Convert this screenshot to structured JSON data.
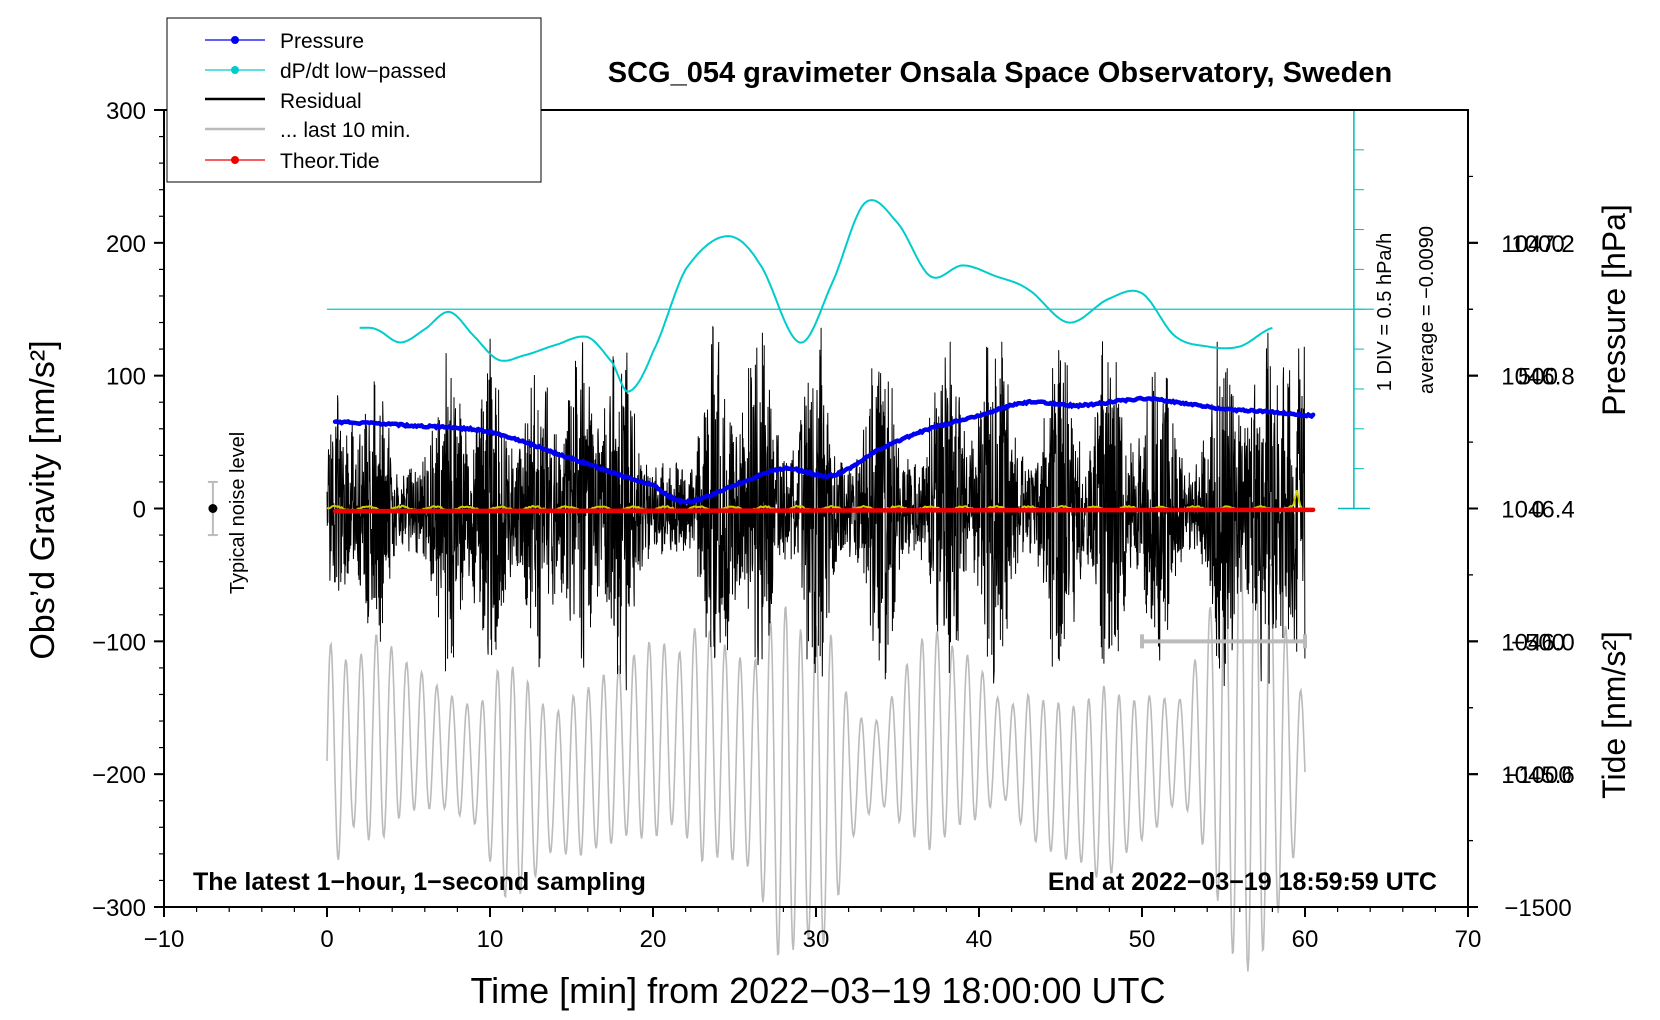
{
  "chart_data": {
    "type": "line",
    "title": "SCG_054 gravimeter Onsala Space Observatory, Sweden",
    "xlabel": "Time [min] from 2022−03−19 18:00:00 UTC",
    "ylabel_left": "Obs’d Gravity [nm/s²]",
    "ylabel_right_top": "Pressure [hPa]",
    "ylabel_right_bottom": "Tide [nm/s²]",
    "xlim": [
      -10,
      70
    ],
    "ylim_left": [
      -300,
      300
    ],
    "ylim_pressure": [
      1045.2,
      1047.6
    ],
    "ylim_tide": [
      -1500,
      1500
    ],
    "x_ticks": [
      -10,
      0,
      10,
      20,
      30,
      40,
      50,
      60,
      70
    ],
    "x_tick_labels": [
      "−10",
      "0",
      "10",
      "20",
      "30",
      "40",
      "50",
      "60",
      "70"
    ],
    "y_left_ticks": [
      -300,
      -200,
      -100,
      0,
      100,
      200,
      300
    ],
    "y_left_tick_labels": [
      "−300",
      "−200",
      "−100",
      "0",
      "100",
      "200",
      "300"
    ],
    "pressure_ticks": [
      1045.6,
      1046.0,
      1046.4,
      1046.8,
      1047.2
    ],
    "pressure_tick_labels": [
      "1045.6",
      "1046.0",
      "1046.4",
      "1046.8",
      "1047.2"
    ],
    "tide_ticks": [
      -1500,
      -1000,
      -500,
      0,
      500,
      1000
    ],
    "tide_tick_labels": [
      "−1500",
      "−1000",
      "−500",
      "0",
      "500",
      "1000"
    ],
    "annotations": {
      "bottom_left": "The latest 1−hour, 1−second sampling",
      "bottom_right": "End at 2022−03−19 18:59:59 UTC",
      "dpdt_scale": "1 DIV = 0.5 hPa/h",
      "dpdt_average": "average = −0.0090",
      "noise": "Typical noise level"
    },
    "legend": {
      "position": "top-left",
      "entries": [
        {
          "label": "Pressure",
          "color": "#0000ee",
          "style": "line-dot"
        },
        {
          "label": "dP/dt low−passed",
          "color": "#00cccc",
          "style": "line-dot"
        },
        {
          "label": "Residual",
          "color": "#000000",
          "style": "line"
        },
        {
          "label": "... last 10 min.",
          "color": "#bbbbbb",
          "style": "line"
        },
        {
          "label": "Theor.Tide",
          "color": "#ee0000",
          "style": "line-dot"
        }
      ]
    },
    "series": [
      {
        "name": "Pressure",
        "axis": "pressure",
        "color": "#0000ee",
        "x": [
          0.5,
          5,
          10,
          15,
          20,
          22,
          25,
          28,
          31,
          34,
          37,
          40,
          43,
          46,
          50,
          52,
          55,
          58,
          60.5
        ],
        "y": [
          1046.66,
          1046.65,
          1046.63,
          1046.55,
          1046.47,
          1046.42,
          1046.47,
          1046.52,
          1046.5,
          1046.58,
          1046.64,
          1046.68,
          1046.72,
          1046.71,
          1046.73,
          1046.72,
          1046.7,
          1046.69,
          1046.68
        ]
      },
      {
        "name": "dP/dt low−passed",
        "axis": "left",
        "color": "#00cccc",
        "x": [
          2,
          3,
          4.5,
          6,
          7.5,
          9,
          10.5,
          12,
          14,
          16,
          17.5,
          18.5,
          20,
          22,
          24.5,
          26.5,
          29,
          31,
          33,
          35,
          37,
          39,
          41,
          43,
          45.5,
          48,
          50,
          52,
          54,
          56,
          58
        ],
        "y": [
          136,
          135,
          125,
          135,
          148,
          130,
          112,
          115,
          123,
          129,
          110,
          88,
          118,
          180,
          205,
          185,
          125,
          170,
          230,
          215,
          175,
          183,
          175,
          165,
          140,
          158,
          162,
          130,
          122,
          122,
          136
        ]
      },
      {
        "name": "Residual",
        "axis": "left",
        "color": "#000000",
        "x_range": [
          0,
          60
        ],
        "amplitude_max": 140,
        "amplitude_min": -125
      },
      {
        "name": "... last 10 min.",
        "axis": "left",
        "color": "#bbbbbb",
        "x_range": [
          0,
          60
        ],
        "center": -190,
        "amplitude_max": 150
      },
      {
        "name": "Theor.Tide",
        "axis": "tide",
        "color": "#ee0000",
        "x": [
          0.5,
          60.5
        ],
        "y": [
          -10,
          -5
        ]
      },
      {
        "name": "Residual (filtered)",
        "axis": "left",
        "color": "#cccc00",
        "x": [
          0,
          20,
          40,
          59,
          59.5,
          60
        ],
        "y": [
          0,
          0,
          0,
          1,
          12,
          0
        ]
      }
    ],
    "noise_bar": {
      "x": -7,
      "ymin": -20,
      "ymax": 20,
      "center": 0
    },
    "dpdt_axis": {
      "x": 63,
      "zero_y": 150,
      "bottom_y": 0,
      "top_y": 300,
      "minor_div": 15
    },
    "last10_range_bar": {
      "x_from": 50,
      "x_to": 60,
      "y": -100
    }
  }
}
